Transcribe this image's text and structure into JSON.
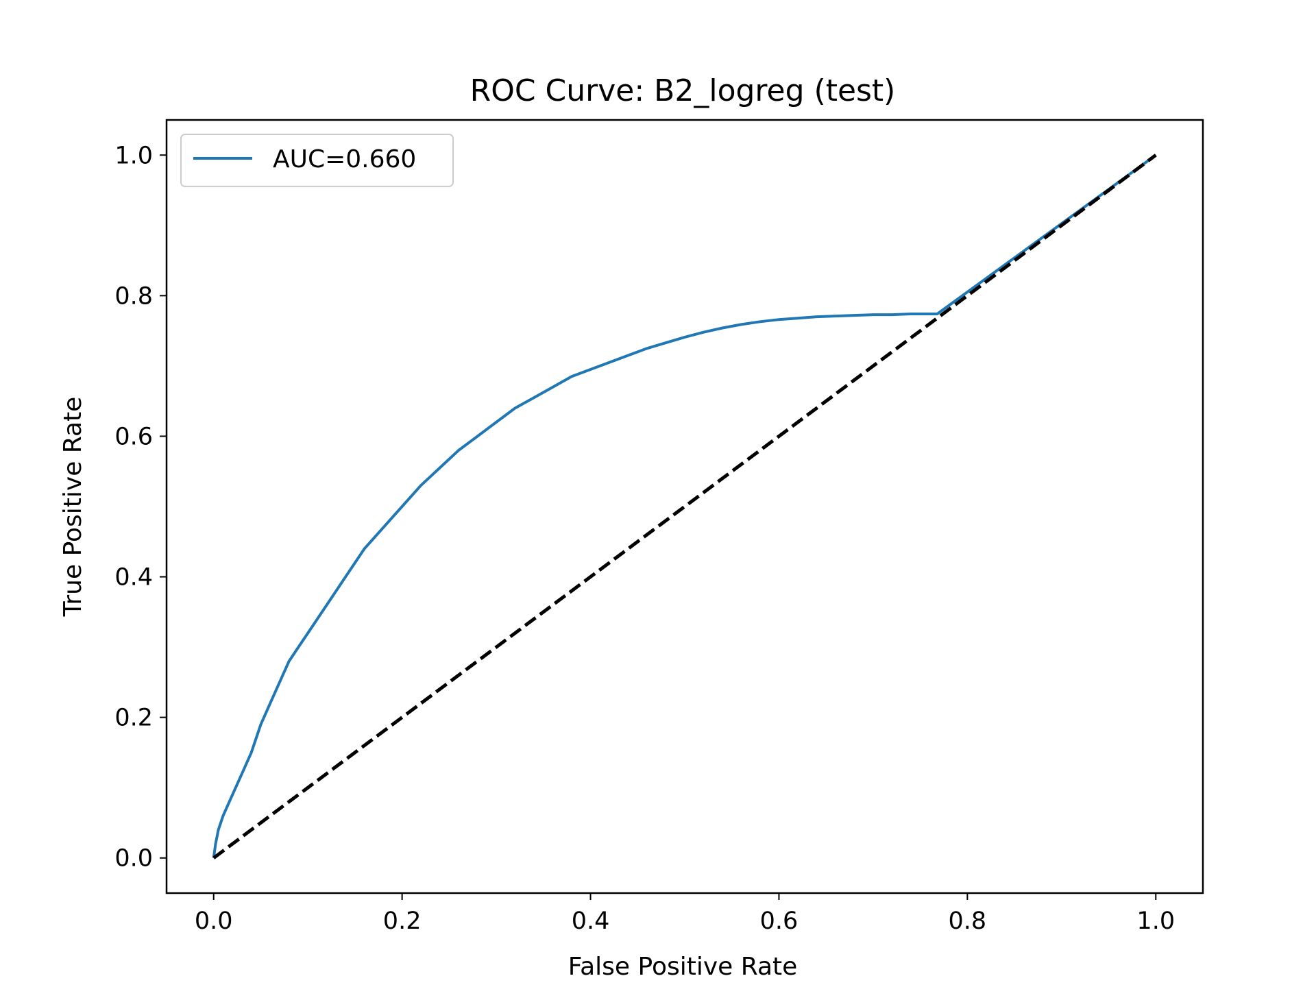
{
  "chart_data": {
    "type": "line",
    "title": "ROC Curve: B2_logreg (test)",
    "xlabel": "False Positive Rate",
    "ylabel": "True Positive Rate",
    "xlim": [
      -0.05,
      1.05
    ],
    "ylim": [
      -0.05,
      1.05
    ],
    "xticks": [
      "0.0",
      "0.2",
      "0.4",
      "0.6",
      "0.8",
      "1.0"
    ],
    "yticks": [
      "0.0",
      "0.2",
      "0.4",
      "0.6",
      "0.8",
      "1.0"
    ],
    "grid": false,
    "legend_position": "upper left",
    "series": [
      {
        "name": "AUC=0.660",
        "color": "#1f77b4",
        "style": "solid",
        "x": [
          0.0,
          0.002,
          0.005,
          0.01,
          0.015,
          0.02,
          0.03,
          0.04,
          0.05,
          0.06,
          0.07,
          0.08,
          0.09,
          0.1,
          0.12,
          0.14,
          0.16,
          0.18,
          0.2,
          0.22,
          0.24,
          0.26,
          0.28,
          0.3,
          0.32,
          0.34,
          0.36,
          0.38,
          0.4,
          0.42,
          0.44,
          0.46,
          0.48,
          0.5,
          0.52,
          0.54,
          0.56,
          0.58,
          0.6,
          0.62,
          0.64,
          0.66,
          0.68,
          0.7,
          0.72,
          0.74,
          0.76,
          0.768,
          1.0
        ],
        "y": [
          0.0,
          0.02,
          0.04,
          0.06,
          0.075,
          0.09,
          0.12,
          0.15,
          0.19,
          0.22,
          0.25,
          0.28,
          0.3,
          0.32,
          0.36,
          0.4,
          0.44,
          0.47,
          0.5,
          0.53,
          0.555,
          0.58,
          0.6,
          0.62,
          0.64,
          0.655,
          0.67,
          0.685,
          0.695,
          0.705,
          0.715,
          0.725,
          0.733,
          0.741,
          0.748,
          0.754,
          0.759,
          0.763,
          0.766,
          0.768,
          0.77,
          0.771,
          0.772,
          0.773,
          0.773,
          0.774,
          0.774,
          0.774,
          1.0
        ]
      },
      {
        "name": "",
        "color": "#000000",
        "style": "dashed",
        "x": [
          0.0,
          1.0
        ],
        "y": [
          0.0,
          1.0
        ]
      }
    ]
  }
}
